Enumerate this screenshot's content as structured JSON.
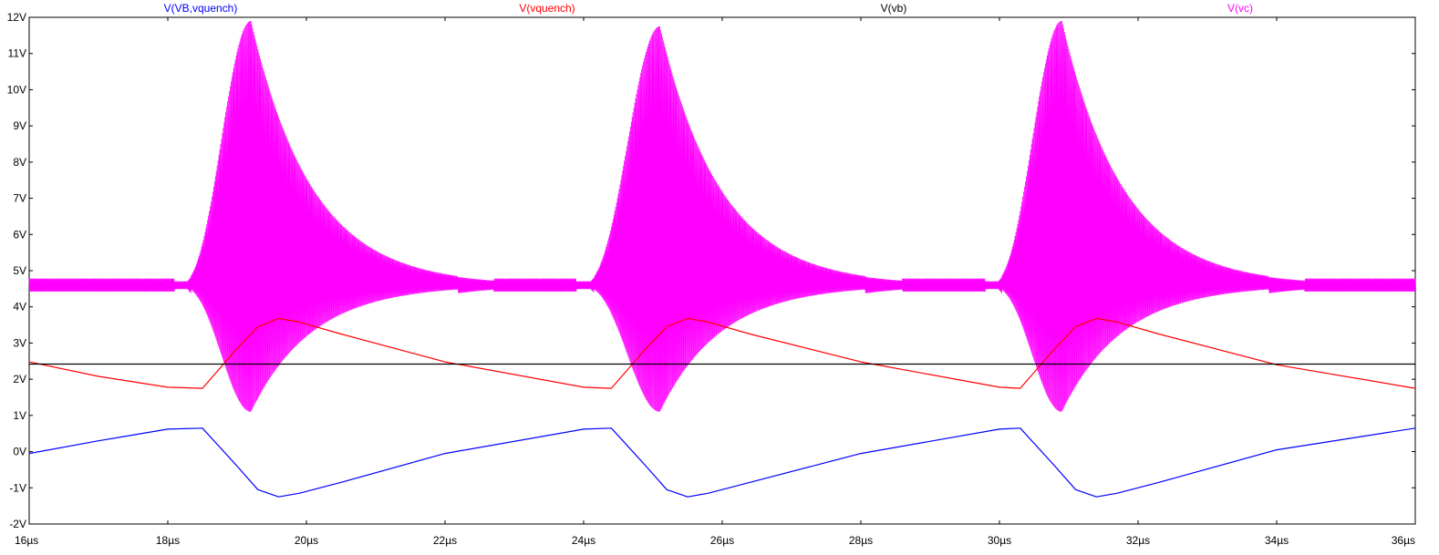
{
  "chart_data": {
    "type": "line",
    "title": "",
    "xlabel": "",
    "ylabel": "",
    "xlim": [
      16,
      36
    ],
    "ylim": [
      -2,
      12
    ],
    "x_unit": "µs",
    "y_unit": "V",
    "grid": false,
    "legend_position": "top",
    "x_ticks": [
      "16µs",
      "18µs",
      "20µs",
      "22µs",
      "24µs",
      "26µs",
      "28µs",
      "30µs",
      "32µs",
      "34µs",
      "36µs"
    ],
    "y_ticks": [
      "12V",
      "11V",
      "10V",
      "9V",
      "8V",
      "7V",
      "6V",
      "5V",
      "4V",
      "3V",
      "2V",
      "1V",
      "0V",
      "-1V",
      "-2V"
    ],
    "x_tick_values": [
      16,
      18,
      20,
      22,
      24,
      26,
      28,
      30,
      32,
      34,
      36
    ],
    "y_tick_values": [
      12,
      11,
      10,
      9,
      8,
      7,
      6,
      5,
      4,
      3,
      2,
      1,
      0,
      -1,
      -2
    ],
    "series": [
      {
        "name": "V(VB,vquench)",
        "color": "#0000ff",
        "x": [
          16,
          17,
          18,
          18.5,
          19,
          19.3,
          19.6,
          19.9,
          20.5,
          22,
          24,
          24.4,
          24.9,
          25.2,
          25.5,
          25.8,
          26.4,
          28,
          30,
          30.3,
          30.8,
          31.1,
          31.4,
          31.7,
          32.3,
          34,
          36
        ],
        "y": [
          -0.05,
          0.3,
          0.62,
          0.65,
          -0.4,
          -1.05,
          -1.25,
          -1.15,
          -0.85,
          -0.05,
          0.62,
          0.65,
          -0.4,
          -1.05,
          -1.25,
          -1.15,
          -0.85,
          -0.05,
          0.62,
          0.65,
          -0.4,
          -1.05,
          -1.25,
          -1.15,
          -0.85,
          0.05,
          0.65
        ]
      },
      {
        "name": "V(vquench)",
        "color": "#ff0000",
        "x": [
          16,
          17,
          18,
          18.5,
          19,
          19.3,
          19.6,
          19.9,
          20.5,
          22,
          24,
          24.4,
          24.9,
          25.2,
          25.5,
          25.8,
          26.4,
          28,
          30,
          30.3,
          30.8,
          31.1,
          31.4,
          31.7,
          32.3,
          34,
          36
        ],
        "y": [
          2.48,
          2.08,
          1.78,
          1.75,
          2.85,
          3.45,
          3.68,
          3.58,
          3.25,
          2.48,
          1.78,
          1.75,
          2.85,
          3.45,
          3.68,
          3.58,
          3.25,
          2.48,
          1.78,
          1.75,
          2.85,
          3.45,
          3.68,
          3.58,
          3.25,
          2.4,
          1.75
        ]
      },
      {
        "name": "V(vb)",
        "color": "#000000",
        "x": [
          16,
          36
        ],
        "y": [
          2.42,
          2.42
        ]
      },
      {
        "name": "V(vc)",
        "color": "#ff00ff",
        "center": 4.6,
        "bursts": [
          {
            "start": 18.1,
            "peak": 19.2,
            "end": 21.5,
            "max": 11.9,
            "min": 1.1
          },
          {
            "start": 23.9,
            "peak": 25.1,
            "end": 27.4,
            "max": 11.75,
            "min": 1.1
          },
          {
            "start": 29.8,
            "peak": 30.9,
            "end": 33.2,
            "max": 11.9,
            "min": 1.1
          }
        ],
        "idle_ripple_amplitude": 0.2
      }
    ]
  }
}
